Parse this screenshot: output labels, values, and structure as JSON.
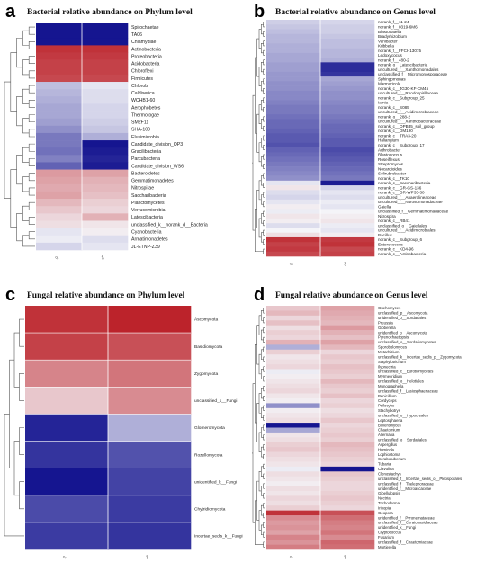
{
  "colors": {
    "low": "#0d0d8c",
    "mid": "#f4f4f8",
    "high": "#b8141c",
    "tree": "#555555"
  },
  "chart_data": [
    {
      "type": "heatmap",
      "panel": "a",
      "title": "Bacterial relative abundance on Phylum level",
      "columns": [
        "♀",
        "♂"
      ],
      "rows": [
        "Spirochaetae",
        "TA06",
        "Chlamydiae",
        "Actinobacteria",
        "Proteobacteria",
        "Acidobacteria",
        "Chloroflexi",
        "Firmicutes",
        "Chlorobi",
        "Caldiserica",
        "WCHB1-60",
        "Aerophobetes",
        "Thermotogae",
        "SM2F11",
        "SHA-109",
        "Elusimicrobia",
        "Candidate_division_OP3",
        "Gracilibacteria",
        "Parcubacteria",
        "Candidate_division_WS6",
        "Bacteroidetes",
        "Gemmatimonadetes",
        "Nitrospirae",
        "Saccharibacteria",
        "Planctomycetes",
        "Verrucomicrobia",
        "Latescibacteria",
        "unclassified_k__norank_d__Bacteria",
        "Cyanobacteria",
        "Armatimonadetes",
        "JL-ETNP-Z39"
      ],
      "values": [
        [
          -2.9,
          -2.9
        ],
        [
          -2.9,
          -2.9
        ],
        [
          -2.9,
          -2.9
        ],
        [
          2.6,
          2.6
        ],
        [
          2.5,
          2.5
        ],
        [
          2.4,
          2.4
        ],
        [
          2.4,
          2.4
        ],
        [
          2.3,
          2.3
        ],
        [
          -0.7,
          -0.2
        ],
        [
          -0.8,
          -0.3
        ],
        [
          -0.9,
          -0.3
        ],
        [
          -1.0,
          -0.4
        ],
        [
          -1.0,
          -0.4
        ],
        [
          -1.1,
          -0.5
        ],
        [
          -1.3,
          -0.6
        ],
        [
          -1.6,
          -0.9
        ],
        [
          -1.6,
          -2.9
        ],
        [
          -1.7,
          -2.8
        ],
        [
          -1.5,
          -2.7
        ],
        [
          -1.9,
          -2.8
        ],
        [
          1.2,
          1.1
        ],
        [
          1.1,
          0.9
        ],
        [
          1.0,
          0.8
        ],
        [
          1.1,
          0.7
        ],
        [
          0.8,
          0.5
        ],
        [
          0.6,
          0.4
        ],
        [
          0.4,
          0.9
        ],
        [
          0.3,
          0.2
        ],
        [
          -0.2,
          0.1
        ],
        [
          -0.1,
          -0.3
        ],
        [
          -0.4,
          -0.2
        ]
      ]
    },
    {
      "type": "heatmap",
      "panel": "b",
      "title": "Bacterial relative abundance on Genus level",
      "columns": [
        "♀",
        "♂"
      ],
      "rows": [
        "norank_f__11-24",
        "norank_f__0319-6M6",
        "Blastocatella",
        "Bradyrhizobium",
        "Vanibacter",
        "Kribbella",
        "norank_f__FFCH13075",
        "Ledoxycocus",
        "norank_f__480-2",
        "norank_o__Latescibacteria",
        "uncultured_f__Xanthomonadales",
        "unclassified_f__Micromonosporaceae",
        "Sphingomonas",
        "Marmoricola",
        "norank_c__JG30-KF-CM45",
        "uncultured_f__Rhodospirillaceae",
        "norank_c__Subgroup_25",
        "Iamia",
        "norank_c__S085",
        "uncultured_f__Acidimicrobiaceae",
        "norank_o__288-2",
        "uncultured_f__Xanthobacteraceae",
        "norank_c__OPB35_soil_group",
        "norank_c__DM190",
        "norank_c__TRA3-20",
        "Haliangium",
        "norank_c__Subgroup_17",
        "Arthrobacter",
        "Blastococcus",
        "Roseiflexus",
        "Streptomyces",
        "Nocardioides",
        "Solirubrobacter",
        "norank_c__TK10",
        "norank_c__Saccharibacteria",
        "norank_c__GR-GS-136",
        "norank_c__GR-WP33-30",
        "uncultured_f__Anaerolineaceae",
        "uncultured_f__Nitrosomonadaceae",
        "Gaiella",
        "unclassified_f__Gemmatimonadaceae",
        "Nitrospira",
        "norank_c__RB41",
        "unclassified_o__Gaiellales",
        "uncultured_f__Acidimicrobiales",
        "Bacillus",
        "norank_c__Subgroup_6",
        "Enterococcus",
        "norank_c__KD4-96",
        "norank_c__Actinobacteria"
      ],
      "values": [
        [
          -0.5,
          -0.4
        ],
        [
          -0.6,
          -0.5
        ],
        [
          -0.7,
          -0.5
        ],
        [
          -0.8,
          -0.6
        ],
        [
          -0.8,
          -0.7
        ],
        [
          -0.9,
          -0.7
        ],
        [
          -0.9,
          -0.8
        ],
        [
          -1.0,
          -0.8
        ],
        [
          -1.0,
          -0.9
        ],
        [
          -1.1,
          -2.6
        ],
        [
          -1.1,
          -2.6
        ],
        [
          -1.2,
          -2.5
        ],
        [
          -1.2,
          -1.0
        ],
        [
          -1.3,
          -1.1
        ],
        [
          -1.3,
          -1.2
        ],
        [
          -1.4,
          -1.3
        ],
        [
          -1.4,
          -1.3
        ],
        [
          -1.5,
          -1.4
        ],
        [
          -1.6,
          -1.5
        ],
        [
          -1.6,
          -1.5
        ],
        [
          -1.7,
          -1.6
        ],
        [
          -1.8,
          -1.7
        ],
        [
          -1.8,
          -1.8
        ],
        [
          -1.9,
          -1.8
        ],
        [
          -2.0,
          -1.9
        ],
        [
          -2.0,
          -2.0
        ],
        [
          -2.1,
          -2.0
        ],
        [
          -1.9,
          -2.2
        ],
        [
          -1.8,
          -2.1
        ],
        [
          -1.7,
          -2.0
        ],
        [
          -1.6,
          -1.9
        ],
        [
          -1.5,
          -1.8
        ],
        [
          -1.4,
          -1.7
        ],
        [
          -1.3,
          -1.6
        ],
        [
          -0.2,
          -2.8
        ],
        [
          0.2,
          -0.4
        ],
        [
          -0.3,
          -0.2
        ],
        [
          -0.4,
          -0.3
        ],
        [
          -0.2,
          -0.1
        ],
        [
          0.1,
          -0.2
        ],
        [
          -0.1,
          0.0
        ],
        [
          0.2,
          0.1
        ],
        [
          0.1,
          0.2
        ],
        [
          -0.3,
          -0.1
        ],
        [
          0.0,
          -0.2
        ],
        [
          0.3,
          0.1
        ],
        [
          2.6,
          2.5
        ],
        [
          2.4,
          2.6
        ],
        [
          2.5,
          2.3
        ],
        [
          2.3,
          2.4
        ]
      ]
    },
    {
      "type": "heatmap",
      "panel": "c",
      "title": "Fungal relative abundance on Phylum level",
      "columns": [
        "♀",
        "♂"
      ],
      "rows": [
        "Ascomycota",
        "Basidiomycota",
        "Zygomycota",
        "unclassified_k__Fungi",
        "Glomeromycota",
        "Rozellomycota",
        "unidentified_k__Fungi",
        "Chytridiomycota",
        "Incertae_sedis_k__Fungi"
      ],
      "values": [
        [
          2.6,
          2.8
        ],
        [
          2.4,
          2.2
        ],
        [
          1.5,
          1.7
        ],
        [
          0.6,
          1.4
        ],
        [
          -2.7,
          -0.9
        ],
        [
          -2.5,
          -2.1
        ],
        [
          -2.9,
          -2.3
        ],
        [
          -2.2,
          -2.4
        ],
        [
          -2.4,
          -2.5
        ]
      ]
    },
    {
      "type": "heatmap",
      "panel": "d",
      "title": "Fungal relative abundance on Genus level",
      "columns": [
        "♀",
        "♂"
      ],
      "rows": [
        "Guehomyces",
        "unclassified_p__Ascomycota",
        "unidentified_o__Sordariales",
        "Preussia",
        "Gibberella",
        "unidentified_p__Ascomycota",
        "Pyrenochaetopsis",
        "unclassified_o__Sordariomycetes",
        "Sporobolomyces",
        "Metarhizium",
        "unclassified_k__Incertae_sedis_p__Zygomycota",
        "Staphylotrichum",
        "Ilyonectria",
        "unclassified_c__Eurotiomycetes",
        "Myrmecridium",
        "unclassified_o__Helotiales",
        "Monographella",
        "unclassified_f__Lasiosphaeriaceae",
        "Penicillium",
        "Cordyceps",
        "Psilocybe",
        "Stachybotrys",
        "unclassified_o__Hypocreales",
        "Leptosphaeria",
        "Bulleromyces",
        "Chaetomium",
        "Alternaria",
        "unclassified_o__Sordariales",
        "Aspergillus",
        "Humicola",
        "Lophiostoma",
        "Cerabotuberium",
        "Tubaria",
        "Clavulina",
        "Clonostachys",
        "unclassified_f__Incertae_sedis_o__Pleosporales",
        "unclassified_f__Thelephoraceae",
        "unidentified_f__Microascaceae",
        "Gibellulopsis",
        "Nectria",
        "Trichoderma",
        "Irinopia",
        "Geopora",
        "unidentified_f__Pyronemataceae",
        "unclassified_f__Ceratobasidiaceae",
        "unidentified_k__Fungi",
        "Cryptococcus",
        "Fusarium",
        "unclassified_f__Chaetomiaceae",
        "Mortierella"
      ],
      "values": [
        [
          0.6,
          1.1
        ],
        [
          0.8,
          1.0
        ],
        [
          0.4,
          0.9
        ],
        [
          0.7,
          0.8
        ],
        [
          0.3,
          1.2
        ],
        [
          0.5,
          0.9
        ],
        [
          0.4,
          0.7
        ],
        [
          0.9,
          1.1
        ],
        [
          -0.9,
          0.8
        ],
        [
          0.5,
          0.4
        ],
        [
          0.2,
          0.6
        ],
        [
          0.3,
          0.5
        ],
        [
          0.4,
          0.7
        ],
        [
          -0.1,
          0.6
        ],
        [
          0.1,
          0.5
        ],
        [
          0.2,
          0.8
        ],
        [
          0.3,
          0.6
        ],
        [
          0.4,
          0.5
        ],
        [
          0.2,
          0.7
        ],
        [
          0.1,
          0.4
        ],
        [
          -1.3,
          0.5
        ],
        [
          0.1,
          0.3
        ],
        [
          0.2,
          0.4
        ],
        [
          0.3,
          0.6
        ],
        [
          -2.9,
          0.4
        ],
        [
          -1.0,
          0.5
        ],
        [
          0.2,
          0.6
        ],
        [
          0.3,
          0.5
        ],
        [
          0.5,
          0.8
        ],
        [
          0.6,
          0.7
        ],
        [
          0.4,
          0.6
        ],
        [
          0.3,
          0.5
        ],
        [
          0.2,
          0.4
        ],
        [
          -0.1,
          -2.9
        ],
        [
          0.3,
          0.6
        ],
        [
          0.2,
          0.5
        ],
        [
          0.1,
          0.4
        ],
        [
          0.3,
          0.4
        ],
        [
          0.2,
          0.5
        ],
        [
          0.4,
          0.6
        ],
        [
          0.3,
          0.5
        ],
        [
          0.5,
          0.4
        ],
        [
          2.6,
          2.2
        ],
        [
          1.4,
          1.8
        ],
        [
          1.2,
          1.6
        ],
        [
          1.3,
          1.5
        ],
        [
          1.1,
          1.7
        ],
        [
          1.5,
          1.4
        ],
        [
          1.3,
          1.9
        ],
        [
          1.6,
          1.8
        ]
      ]
    }
  ]
}
